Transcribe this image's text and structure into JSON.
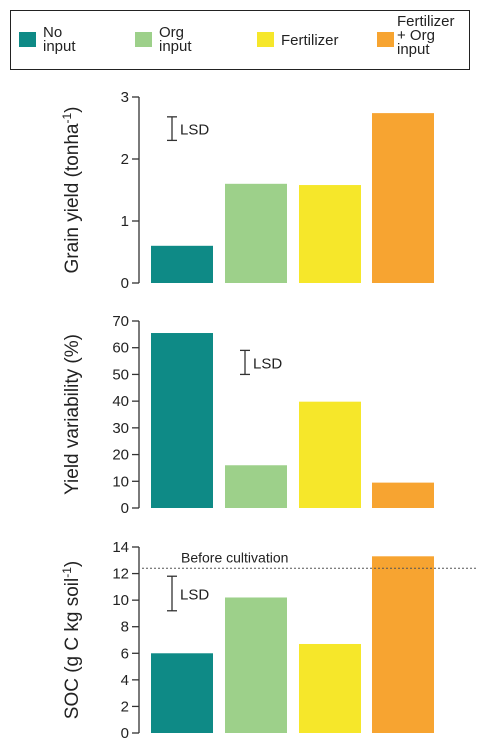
{
  "legend": {
    "items": [
      {
        "label": "No\ninput",
        "color": "#0e8a86"
      },
      {
        "label": "Org\ninput",
        "color": "#9dd08a"
      },
      {
        "label": "Fertilizer",
        "color": "#f6e72a"
      },
      {
        "label": "Fertilizer\n+ Org\ninput",
        "color": "#f7a431"
      }
    ]
  },
  "chart_data": [
    {
      "type": "bar",
      "categories": [
        "No input",
        "Org input",
        "Fertilizer",
        "Fertilizer + Org input"
      ],
      "values": [
        0.6,
        1.6,
        1.58,
        2.74
      ],
      "ylabel": "Grain yield (tonha-1)",
      "ylabel_main": "Grain yield (tonha",
      "ylabel_sup": "-1",
      "ylabel_end": ")",
      "ylim": [
        0,
        3
      ],
      "yticks": [
        "0",
        "1",
        "2",
        "3"
      ],
      "lsd": {
        "label": "LSD",
        "low": 2.3,
        "high": 2.68
      }
    },
    {
      "type": "bar",
      "categories": [
        "No input",
        "Org input",
        "Fertilizer",
        "Fertilizer + Org input"
      ],
      "values": [
        65.5,
        16,
        39.8,
        9.5
      ],
      "ylabel": "Yield variability  (%)",
      "ylim": [
        0,
        70
      ],
      "yticks": [
        "0",
        "10",
        "20",
        "30",
        "40",
        "50",
        "60",
        "70"
      ],
      "lsd": {
        "label": "LSD",
        "low": 50,
        "high": 59
      }
    },
    {
      "type": "bar",
      "categories": [
        "No input",
        "Org input",
        "Fertilizer",
        "Fertilizer + Org input"
      ],
      "values": [
        6,
        10.2,
        6.7,
        13.3
      ],
      "ylabel": "SOC (g C kg soil-1)",
      "ylabel_main": "SOC (g C kg soil",
      "ylabel_sup": "-1",
      "ylabel_end": ")",
      "ylim": [
        0,
        14
      ],
      "yticks": [
        "0",
        "2",
        "4",
        "6",
        "8",
        "10",
        "12",
        "14"
      ],
      "lsd": {
        "label": "LSD",
        "low": 9.2,
        "high": 11.8
      },
      "reference_line": {
        "label": "Before cultivation",
        "value": 12.4
      }
    }
  ]
}
